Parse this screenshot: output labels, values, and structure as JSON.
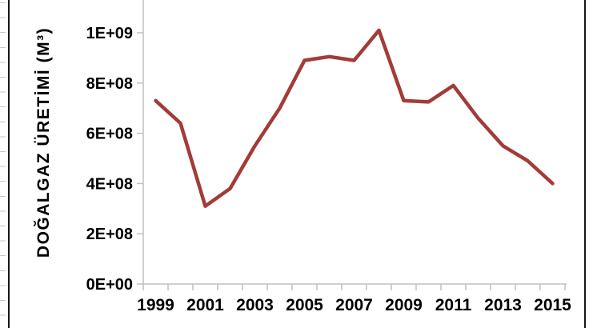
{
  "chart_data": {
    "type": "line",
    "title": "",
    "xlabel": "",
    "ylabel": "DOĞALGAZ ÜRETİMİ (M³)",
    "x": [
      1999,
      2000,
      2001,
      2002,
      2003,
      2004,
      2005,
      2006,
      2007,
      2008,
      2009,
      2010,
      2011,
      2012,
      2013,
      2014,
      2015
    ],
    "values": [
      730000000,
      640000000,
      310000000,
      380000000,
      550000000,
      700000000,
      890000000,
      905000000,
      890000000,
      1010000000,
      730000000,
      725000000,
      790000000,
      660000000,
      550000000,
      490000000,
      400000000
    ],
    "y_tick_labels": [
      "0E+00",
      "2E+08",
      "4E+08",
      "6E+08",
      "8E+08",
      "1E+09"
    ],
    "y_tick_values": [
      0,
      200000000,
      400000000,
      600000000,
      800000000,
      1000000000
    ],
    "x_tick_labels": [
      "1999",
      "2001",
      "2003",
      "2005",
      "2007",
      "2009",
      "2011",
      "2013",
      "2015"
    ],
    "ylim": [
      0,
      1130000000
    ],
    "grid": false,
    "legend": false
  },
  "colors": {
    "line": "#A33B38",
    "axis": "#C0C0C0",
    "text": "#000000",
    "frame_border": "#161616",
    "ruler_tick": "#C7C7C7"
  }
}
